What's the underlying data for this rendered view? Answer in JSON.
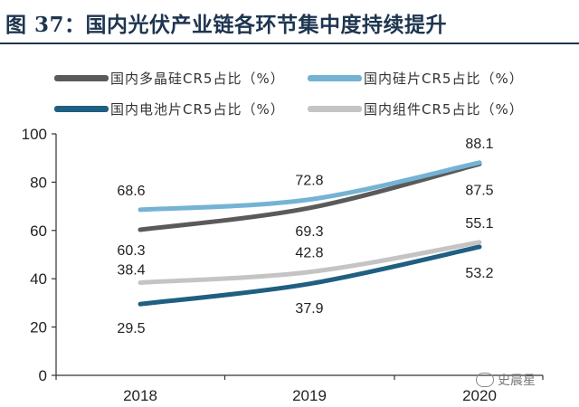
{
  "header": {
    "title": "图 37：国内光伏产业链各环节集中度持续提升"
  },
  "colors": {
    "title": "#1e3550",
    "polysilicon": "#5a5a5a",
    "wafer": "#74b3d3",
    "cell": "#1f5f82",
    "module": "#c4c4c4",
    "axis": "#333333"
  },
  "legend": [
    {
      "label": "国内多晶硅CR5占比（%）",
      "color": "#5a5a5a"
    },
    {
      "label": "国内硅片CR5占比（%）",
      "color": "#74b3d3"
    },
    {
      "label": "国内电池片CR5占比（%）",
      "color": "#1f5f82"
    },
    {
      "label": "国内组件CR5占比（%）",
      "color": "#c4c4c4"
    }
  ],
  "watermark": {
    "text": "史晨星"
  },
  "chart_data": {
    "type": "line",
    "categories": [
      "2018",
      "2019",
      "2020"
    ],
    "ylim": [
      0,
      100
    ],
    "yticks": [
      "0",
      "20",
      "40",
      "60",
      "80",
      "100"
    ],
    "series": [
      {
        "name": "国内多晶硅CR5占比（%）",
        "values": [
          60.3,
          69.3,
          87.5
        ],
        "labels": [
          "60.3",
          "69.3",
          "87.5"
        ]
      },
      {
        "name": "国内硅片CR5占比（%）",
        "values": [
          68.6,
          72.8,
          88.1
        ],
        "labels": [
          "68.6",
          "72.8",
          "88.1"
        ]
      },
      {
        "name": "国内电池片CR5占比（%）",
        "values": [
          29.5,
          37.9,
          53.2
        ],
        "labels": [
          "29.5",
          "37.9",
          "53.2"
        ]
      },
      {
        "name": "国内组件CR5占比（%）",
        "values": [
          38.4,
          42.8,
          55.1
        ],
        "labels": [
          "38.4",
          "42.8",
          "55.1"
        ]
      }
    ]
  }
}
